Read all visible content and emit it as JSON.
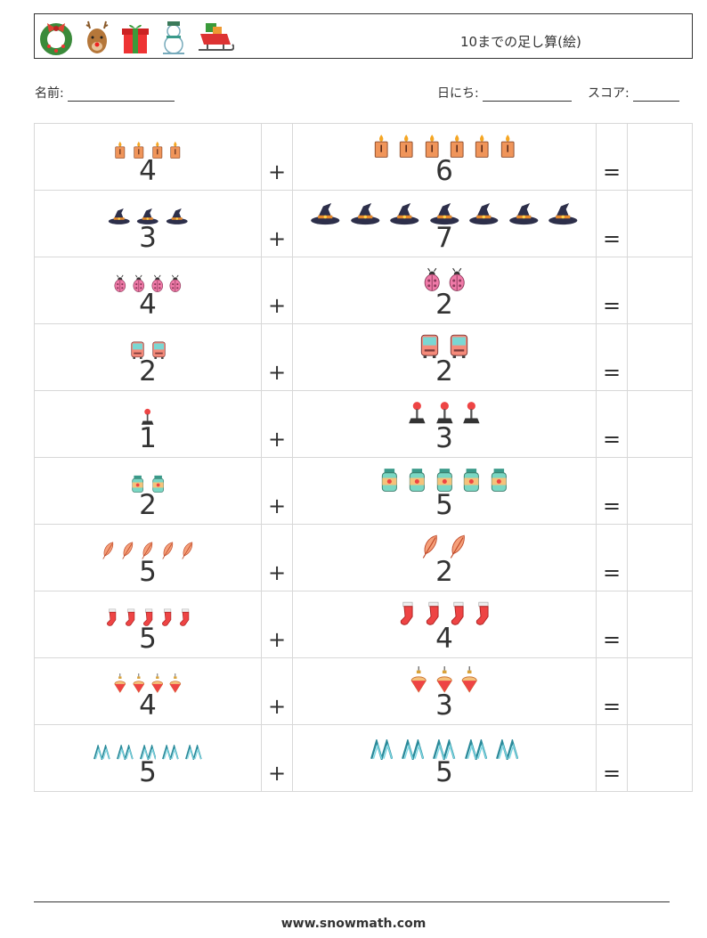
{
  "header": {
    "title": "10までの足し算(絵)",
    "icons": [
      "wreath-icon",
      "reindeer-icon",
      "gift-icon",
      "snowman-icon",
      "sleigh-icon"
    ]
  },
  "info": {
    "name_label": "名前:",
    "date_label": "日にち:",
    "score_label": "スコア:"
  },
  "operators": {
    "plus": "+",
    "equals": "="
  },
  "problems": [
    {
      "icon": "candle-icon",
      "a": "4",
      "b": "6"
    },
    {
      "icon": "witch-hat-icon",
      "a": "3",
      "b": "7"
    },
    {
      "icon": "ladybug-icon",
      "a": "4",
      "b": "2"
    },
    {
      "icon": "bus-icon",
      "a": "2",
      "b": "2"
    },
    {
      "icon": "joystick-icon",
      "a": "1",
      "b": "3"
    },
    {
      "icon": "jar-icon",
      "a": "2",
      "b": "5"
    },
    {
      "icon": "feather-icon",
      "a": "5",
      "b": "2"
    },
    {
      "icon": "stocking-icon",
      "a": "5",
      "b": "4"
    },
    {
      "icon": "ornament-icon",
      "a": "4",
      "b": "3"
    },
    {
      "icon": "zigzag-icon",
      "a": "5",
      "b": "5"
    }
  ],
  "footer": {
    "url": "www.snowmath.com"
  }
}
